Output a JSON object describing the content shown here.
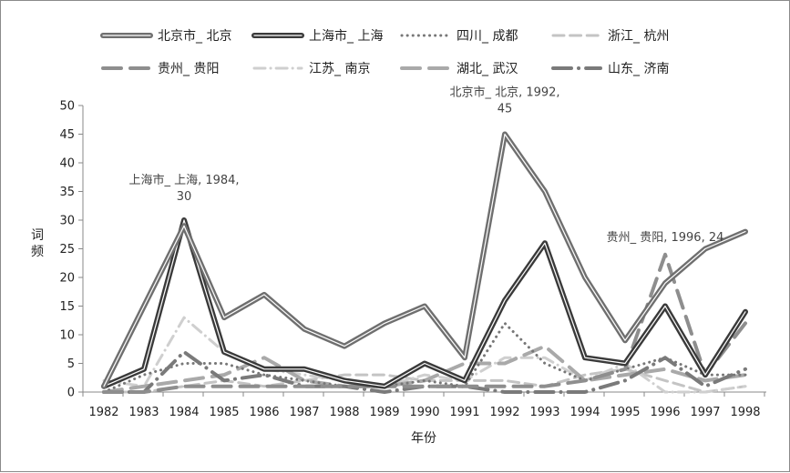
{
  "chart_data": {
    "type": "line",
    "title": "",
    "xlabel": "年份",
    "ylabel": "词频",
    "ylim": [
      0,
      50
    ],
    "yticks": [
      0,
      5,
      10,
      15,
      20,
      25,
      30,
      35,
      40,
      45,
      50
    ],
    "grid": false,
    "legend_position": "top",
    "categories": [
      "1982",
      "1983",
      "1984",
      "1985",
      "1986",
      "1987",
      "1988",
      "1989",
      "1990",
      "1991",
      "1992",
      "1993",
      "1994",
      "1995",
      "1996",
      "1997",
      "1998"
    ],
    "series": [
      {
        "name": "北京市_ 北京",
        "style": "double",
        "color": "#6f6f6f",
        "width": 5,
        "values": [
          1,
          15,
          29,
          13,
          17,
          11,
          8,
          12,
          15,
          6,
          45,
          35,
          20,
          9,
          19,
          25,
          28
        ]
      },
      {
        "name": "上海市_ 上海",
        "style": "double",
        "color": "#3a3a3a",
        "width": 5,
        "values": [
          1,
          4,
          30,
          7,
          4,
          4,
          2,
          1,
          5,
          2,
          16,
          26,
          6,
          5,
          15,
          3,
          14
        ]
      },
      {
        "name": "四川_ 成都",
        "style": "dotted",
        "color": "#777777",
        "width": 3,
        "values": [
          0,
          3,
          5,
          5,
          3,
          2,
          1,
          1,
          2,
          1,
          12,
          5,
          2,
          4,
          6,
          3,
          3
        ]
      },
      {
        "name": "浙江_ 杭州",
        "style": "dash",
        "color": "#c4c4c4",
        "width": 3,
        "values": [
          0,
          0,
          1,
          2,
          1,
          2,
          3,
          3,
          2,
          2,
          2,
          1,
          3,
          4,
          2,
          0,
          1
        ]
      },
      {
        "name": "贵州_ 贵阳",
        "style": "longdash",
        "color": "#8e8e8e",
        "width": 4,
        "values": [
          0,
          0,
          1,
          1,
          1,
          1,
          1,
          1,
          1,
          1,
          1,
          1,
          2,
          4,
          24,
          3,
          12
        ]
      },
      {
        "name": "江苏_ 南京",
        "style": "dashdot",
        "color": "#cfcfcf",
        "width": 3,
        "values": [
          2,
          1,
          13,
          7,
          4,
          3,
          2,
          1,
          3,
          2,
          6,
          6,
          2,
          5,
          0,
          0,
          1
        ]
      },
      {
        "name": "湖北_ 武汉",
        "style": "longdash",
        "color": "#a9a9a9",
        "width": 4,
        "values": [
          0,
          1,
          2,
          3,
          6,
          2,
          1,
          1,
          2,
          5,
          5,
          8,
          2,
          3,
          4,
          2,
          3
        ]
      },
      {
        "name": "山东_ 济南",
        "style": "longdashdot",
        "color": "#7a7a7a",
        "width": 4,
        "values": [
          0,
          0,
          7,
          2,
          3,
          1,
          1,
          0,
          1,
          1,
          0,
          0,
          0,
          2,
          6,
          1,
          4
        ]
      }
    ],
    "annotations": [
      {
        "series": 1,
        "index": 2,
        "line1": "上海市_ 上海, 1984,",
        "line2": "30"
      },
      {
        "series": 0,
        "index": 10,
        "line1": "北京市_ 北京, 1992,",
        "line2": "45"
      },
      {
        "series": 4,
        "index": 14,
        "line1": "贵州_ 贵阳, 1996, 24",
        "line2": ""
      }
    ]
  }
}
